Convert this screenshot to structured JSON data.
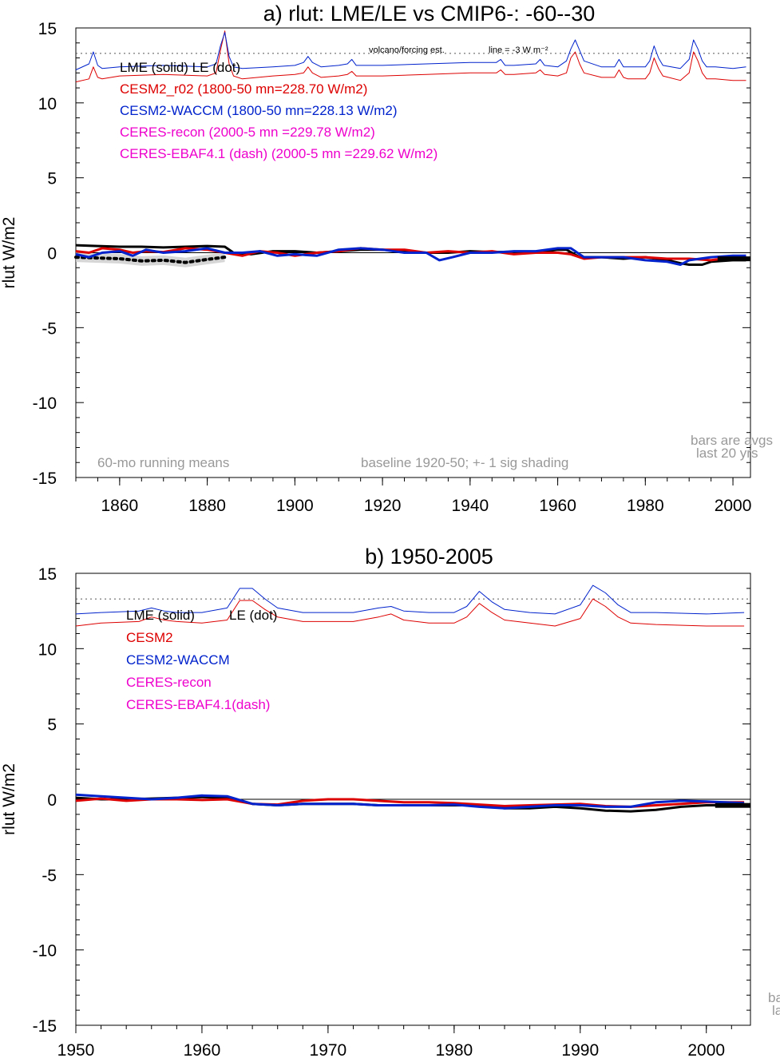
{
  "chart_data": [
    {
      "type": "line",
      "title": "a) rlut: LME/LE vs CMIP6-: -60--30",
      "ylabel": "rlut W/m2",
      "xlim": [
        1850,
        2004
      ],
      "ylim": [
        -15,
        15
      ],
      "x_ticks": [
        1860,
        1880,
        1900,
        1920,
        1940,
        1960,
        1980,
        2000
      ],
      "y_ticks": [
        15,
        10,
        5,
        0,
        -5,
        -10,
        -15
      ],
      "legend": [
        {
          "text": "LME (solid)   LE (dot)",
          "color": "#000000"
        },
        {
          "text": "CESM2_r02 (1800-50 mn=228.70 W/m2)",
          "color": "#dd0000"
        },
        {
          "text": "CESM2-WACCM (1800-50 mn=228.13 W/m2)",
          "color": "#0022cc"
        },
        {
          "text": "CERES-recon (2000-5 mn =229.78 W/m2)",
          "color": "#ee00cc"
        },
        {
          "text": "CERES-EBAF4.1 (dash) (2000-5 mn =229.62 W/m2)",
          "color": "#ee00cc"
        }
      ],
      "annotations": {
        "volcano": "volcano/forcing est.",
        "line_note": "line = -3 W m⁻²",
        "running": "60-mo running means",
        "baseline": "baseline 1920-50; +- 1 sig shading",
        "bars1": "bars are avgs",
        "bars2": "last 20 yrs"
      },
      "dotted_reference": 13.3,
      "series": [
        {
          "name": "LME",
          "color": "#000000",
          "style": "solid",
          "width": 3,
          "x": [
            1850,
            1855,
            1860,
            1865,
            1870,
            1875,
            1880,
            1884,
            1886,
            1890,
            1895,
            1900,
            1905,
            1910,
            1915,
            1920,
            1925,
            1930,
            1935,
            1940,
            1945,
            1950,
            1955,
            1960,
            1962,
            1965,
            1970,
            1975,
            1980,
            1985,
            1988,
            1990,
            1993,
            1995,
            2000,
            2003
          ],
          "y": [
            0.5,
            0.45,
            0.4,
            0.4,
            0.35,
            0.4,
            0.45,
            0.4,
            0.0,
            -0.1,
            0.1,
            0.1,
            0.0,
            0.1,
            0.2,
            0.2,
            0.1,
            0.0,
            0.0,
            0.1,
            0.05,
            0.05,
            0.0,
            0.2,
            0.2,
            -0.3,
            -0.3,
            -0.4,
            -0.3,
            -0.5,
            -0.7,
            -0.8,
            -0.8,
            -0.6,
            -0.5,
            -0.5
          ]
        },
        {
          "name": "LE",
          "color": "#000000",
          "style": "dotted",
          "width": 3,
          "x": [
            1850,
            1855,
            1860,
            1865,
            1870,
            1875,
            1880,
            1884
          ],
          "y": [
            -0.3,
            -0.35,
            -0.4,
            -0.55,
            -0.5,
            -0.65,
            -0.45,
            -0.3
          ]
        },
        {
          "name": "CESM2_r02",
          "color": "#dd0000",
          "style": "solid",
          "width": 3,
          "x": [
            1850,
            1853,
            1856,
            1860,
            1863,
            1866,
            1870,
            1875,
            1880,
            1884,
            1888,
            1892,
            1896,
            1900,
            1905,
            1910,
            1915,
            1920,
            1925,
            1930,
            1935,
            1940,
            1945,
            1950,
            1955,
            1960,
            1963,
            1966,
            1970,
            1975,
            1980,
            1985,
            1990,
            1995,
            2000,
            2003
          ],
          "y": [
            0.1,
            0.0,
            0.3,
            0.2,
            0.0,
            0.1,
            0.05,
            0.3,
            0.2,
            0.0,
            -0.2,
            0.1,
            0.0,
            -0.2,
            0.0,
            0.1,
            0.3,
            0.2,
            0.2,
            0.0,
            0.1,
            0.0,
            0.1,
            -0.1,
            0.0,
            0.0,
            -0.1,
            -0.4,
            -0.3,
            -0.3,
            -0.3,
            -0.4,
            -0.4,
            -0.5,
            -0.3,
            -0.2
          ]
        },
        {
          "name": "CESM2-WACCM",
          "color": "#0022cc",
          "style": "solid",
          "width": 3,
          "x": [
            1850,
            1853,
            1856,
            1860,
            1863,
            1866,
            1870,
            1875,
            1880,
            1884,
            1888,
            1892,
            1896,
            1900,
            1905,
            1910,
            1915,
            1920,
            1925,
            1930,
            1933,
            1936,
            1940,
            1945,
            1950,
            1955,
            1960,
            1963,
            1966,
            1970,
            1975,
            1980,
            1985,
            1988,
            1990,
            1995,
            2000,
            2003
          ],
          "y": [
            -0.1,
            -0.3,
            0.0,
            0.1,
            -0.2,
            0.2,
            0.0,
            0.1,
            0.3,
            0.0,
            0.0,
            0.1,
            -0.2,
            -0.1,
            -0.2,
            0.2,
            0.3,
            0.2,
            0.0,
            0.0,
            -0.5,
            -0.3,
            0.0,
            0.0,
            0.1,
            0.1,
            0.3,
            0.3,
            -0.3,
            -0.3,
            -0.3,
            -0.5,
            -0.6,
            -0.8,
            -0.5,
            -0.3,
            -0.2,
            -0.2
          ]
        },
        {
          "name": "CESM2 forcing (thin)",
          "color": "#dd0000",
          "style": "solid",
          "width": 1,
          "x": [
            1850,
            1853,
            1854,
            1855,
            1856,
            1860,
            1870,
            1880,
            1882,
            1883,
            1884,
            1885,
            1886,
            1888,
            1895,
            1900,
            1902,
            1903,
            1904,
            1906,
            1910,
            1912,
            1913,
            1914,
            1920,
            1930,
            1940,
            1946,
            1947,
            1948,
            1950,
            1955,
            1956,
            1957,
            1960,
            1962,
            1963,
            1964,
            1965,
            1966,
            1970,
            1973,
            1974,
            1975,
            1976,
            1980,
            1981,
            1982,
            1983,
            1984,
            1988,
            1990,
            1991,
            1992,
            1993,
            1994,
            1996,
            2000,
            2003
          ],
          "y": [
            11.4,
            11.6,
            12.4,
            11.7,
            11.6,
            11.8,
            11.9,
            11.8,
            12.0,
            13.5,
            14.8,
            12.6,
            11.8,
            11.6,
            11.8,
            11.9,
            12.0,
            12.4,
            12.0,
            11.7,
            11.8,
            11.9,
            12.1,
            11.8,
            11.8,
            11.9,
            12.0,
            12.0,
            12.2,
            11.9,
            11.9,
            12.0,
            12.2,
            11.9,
            11.8,
            12.0,
            13.0,
            13.4,
            12.6,
            12.0,
            11.7,
            11.7,
            12.2,
            11.7,
            11.6,
            11.6,
            12.0,
            13.0,
            12.3,
            11.8,
            11.5,
            12.0,
            13.4,
            12.8,
            12.0,
            11.6,
            11.6,
            11.5,
            11.5
          ]
        },
        {
          "name": "CESM2-WACCM forcing (thin)",
          "color": "#0022cc",
          "style": "solid",
          "width": 1,
          "x": [
            1850,
            1853,
            1854,
            1855,
            1856,
            1860,
            1870,
            1880,
            1882,
            1883,
            1884,
            1885,
            1886,
            1888,
            1895,
            1900,
            1902,
            1903,
            1904,
            1906,
            1910,
            1912,
            1913,
            1914,
            1920,
            1930,
            1940,
            1946,
            1947,
            1948,
            1950,
            1955,
            1956,
            1957,
            1960,
            1962,
            1963,
            1964,
            1965,
            1966,
            1970,
            1973,
            1974,
            1975,
            1976,
            1980,
            1981,
            1982,
            1983,
            1984,
            1988,
            1990,
            1991,
            1992,
            1993,
            1994,
            1996,
            2000,
            2003
          ],
          "y": [
            12.2,
            12.6,
            13.4,
            12.5,
            12.3,
            12.4,
            12.5,
            12.4,
            12.6,
            13.8,
            14.7,
            13.1,
            12.4,
            12.3,
            12.4,
            12.5,
            12.7,
            13.1,
            12.7,
            12.4,
            12.5,
            12.6,
            12.9,
            12.5,
            12.5,
            12.6,
            12.7,
            12.7,
            12.9,
            12.5,
            12.5,
            12.6,
            12.9,
            12.5,
            12.4,
            12.8,
            13.6,
            14.2,
            13.5,
            12.8,
            12.4,
            12.4,
            12.9,
            12.4,
            12.4,
            12.4,
            12.8,
            13.8,
            13.0,
            12.5,
            12.3,
            12.9,
            14.2,
            13.6,
            12.8,
            12.4,
            12.4,
            12.3,
            12.4
          ]
        }
      ]
    },
    {
      "type": "line",
      "title": "b) 1950-2005",
      "ylabel": "rlut W/m2",
      "xlim": [
        1950,
        2003.5
      ],
      "ylim": [
        -15,
        15
      ],
      "x_ticks": [
        1950,
        1960,
        1970,
        1980,
        1990,
        2000
      ],
      "y_ticks": [
        15,
        10,
        5,
        0,
        -5,
        -10,
        -15
      ],
      "legend": [
        {
          "text": "LME (solid)",
          "color": "#000000"
        },
        {
          "text": "LE (dot)",
          "color": "#000000"
        },
        {
          "text": "CESM2",
          "color": "#dd0000"
        },
        {
          "text": "CESM2-WACCM",
          "color": "#0022cc"
        },
        {
          "text": "CERES-recon",
          "color": "#ee00cc"
        },
        {
          "text": "CERES-EBAF4.1(dash)",
          "color": "#ee00cc"
        }
      ],
      "annotations": {
        "bars1": "ba",
        "bars2": "la"
      },
      "dotted_reference": 13.3,
      "series": [
        {
          "name": "LME",
          "color": "#000000",
          "style": "solid",
          "width": 3,
          "x": [
            1950,
            1952,
            1954,
            1956,
            1958,
            1960,
            1962,
            1964,
            1966,
            1968,
            1970,
            1972,
            1974,
            1976,
            1978,
            1980,
            1982,
            1984,
            1986,
            1988,
            1990,
            1992,
            1994,
            1996,
            1998,
            2000,
            2003
          ],
          "y": [
            0.1,
            0.0,
            0.0,
            0.05,
            0.1,
            0.15,
            0.1,
            -0.3,
            -0.4,
            -0.3,
            -0.3,
            -0.3,
            -0.4,
            -0.4,
            -0.4,
            -0.4,
            -0.4,
            -0.6,
            -0.6,
            -0.5,
            -0.6,
            -0.75,
            -0.8,
            -0.7,
            -0.5,
            -0.4,
            -0.4
          ]
        },
        {
          "name": "CESM2",
          "color": "#dd0000",
          "style": "solid",
          "width": 3,
          "x": [
            1950,
            1952,
            1954,
            1956,
            1958,
            1960,
            1962,
            1964,
            1966,
            1968,
            1970,
            1972,
            1974,
            1976,
            1978,
            1980,
            1982,
            1984,
            1986,
            1988,
            1990,
            1992,
            1994,
            1996,
            1998,
            2000,
            2003
          ],
          "y": [
            -0.1,
            0.05,
            -0.1,
            0.0,
            0.0,
            -0.05,
            0.0,
            -0.3,
            -0.35,
            -0.1,
            0.0,
            0.0,
            -0.1,
            -0.2,
            -0.2,
            -0.25,
            -0.35,
            -0.45,
            -0.4,
            -0.35,
            -0.3,
            -0.45,
            -0.5,
            -0.4,
            -0.3,
            -0.2,
            -0.2
          ]
        },
        {
          "name": "CESM2-WACCM",
          "color": "#0022cc",
          "style": "solid",
          "width": 3,
          "x": [
            1950,
            1952,
            1954,
            1956,
            1958,
            1960,
            1962,
            1964,
            1966,
            1968,
            1970,
            1972,
            1974,
            1976,
            1978,
            1980,
            1982,
            1984,
            1986,
            1988,
            1990,
            1992,
            1994,
            1996,
            1998,
            2000,
            2003
          ],
          "y": [
            0.3,
            0.2,
            0.1,
            0.0,
            0.1,
            0.25,
            0.2,
            -0.3,
            -0.4,
            -0.3,
            -0.3,
            -0.3,
            -0.4,
            -0.4,
            -0.4,
            -0.35,
            -0.5,
            -0.6,
            -0.5,
            -0.4,
            -0.4,
            -0.5,
            -0.5,
            -0.2,
            -0.1,
            -0.15,
            -0.25
          ]
        },
        {
          "name": "CESM2 forcing (thin)",
          "color": "#dd0000",
          "style": "solid",
          "width": 1,
          "x": [
            1950,
            1952,
            1955,
            1956,
            1957,
            1958,
            1960,
            1962,
            1963,
            1964,
            1965,
            1966,
            1968,
            1972,
            1974,
            1975,
            1976,
            1978,
            1980,
            1981,
            1982,
            1983,
            1984,
            1986,
            1988,
            1990,
            1991,
            1992,
            1993,
            1994,
            1996,
            2000,
            2003
          ],
          "y": [
            11.5,
            11.7,
            11.8,
            12.1,
            11.9,
            11.8,
            11.7,
            11.9,
            13.2,
            13.2,
            12.6,
            12.1,
            11.8,
            11.8,
            12.1,
            12.3,
            11.9,
            11.7,
            11.7,
            12.1,
            13.0,
            12.4,
            11.9,
            11.7,
            11.5,
            12.0,
            13.3,
            12.8,
            12.1,
            11.7,
            11.6,
            11.5,
            11.5
          ]
        },
        {
          "name": "CESM2-WACCM forcing (thin)",
          "color": "#0022cc",
          "style": "solid",
          "width": 1,
          "x": [
            1950,
            1952,
            1955,
            1956,
            1957,
            1958,
            1960,
            1962,
            1963,
            1964,
            1965,
            1966,
            1968,
            1972,
            1974,
            1975,
            1976,
            1978,
            1980,
            1981,
            1982,
            1983,
            1984,
            1986,
            1988,
            1990,
            1991,
            1992,
            1993,
            1994,
            1996,
            2000,
            2003
          ],
          "y": [
            12.3,
            12.4,
            12.5,
            12.7,
            12.5,
            12.4,
            12.4,
            12.7,
            14.0,
            14.0,
            13.3,
            12.7,
            12.4,
            12.4,
            12.7,
            12.8,
            12.5,
            12.4,
            12.4,
            12.8,
            13.8,
            13.1,
            12.6,
            12.4,
            12.3,
            12.9,
            14.2,
            13.7,
            12.9,
            12.4,
            12.4,
            12.3,
            12.4
          ]
        }
      ]
    }
  ]
}
